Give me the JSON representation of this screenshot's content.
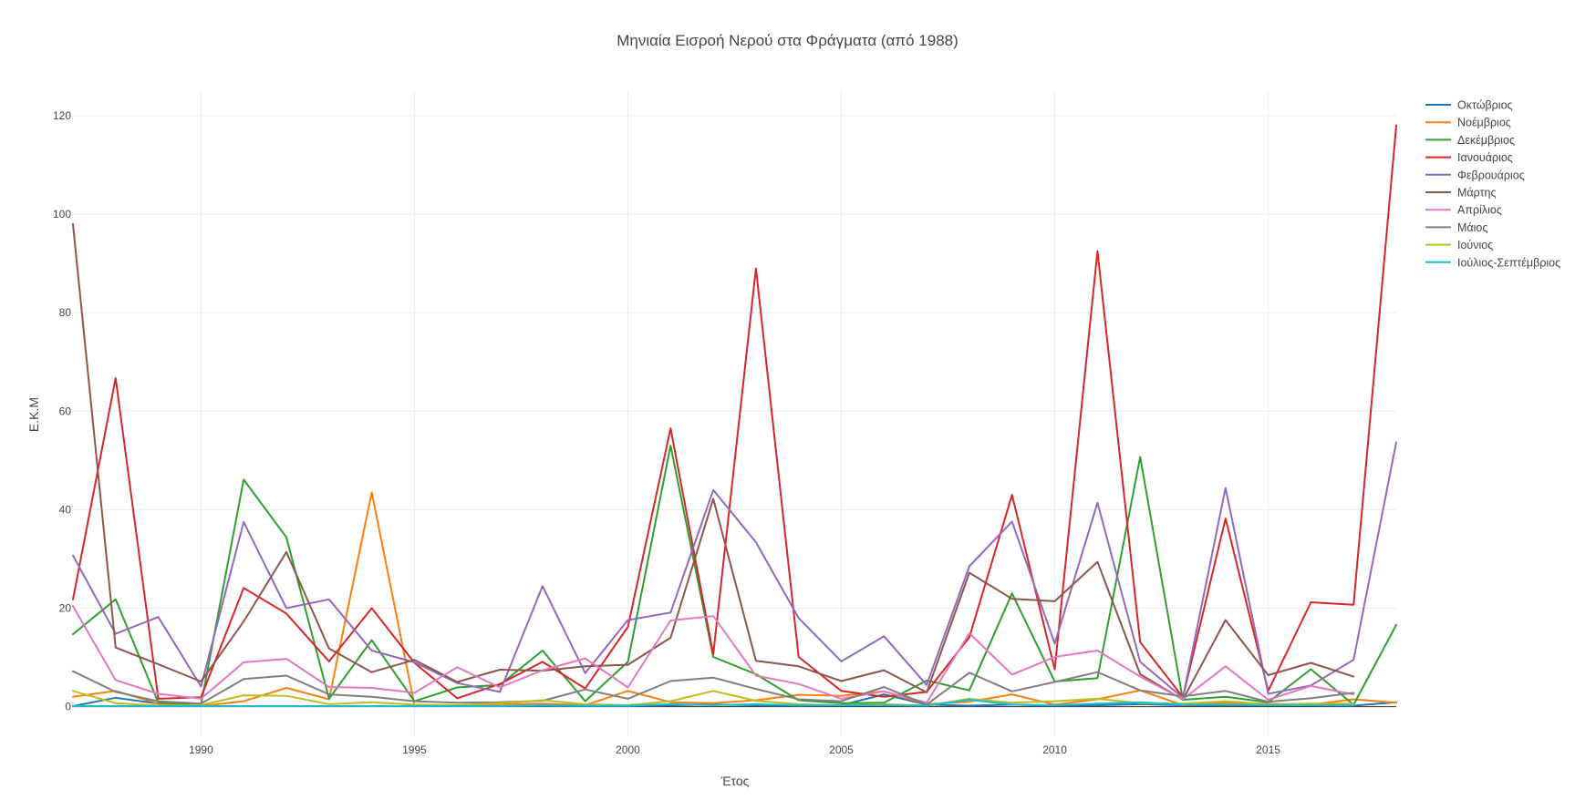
{
  "chart_data": {
    "type": "line",
    "title": "Μηνιαία Εισροή Νερού στα Φράγματα (από 1988)",
    "xlabel": "Έτος",
    "ylabel": "Ε.Κ.Μ",
    "xlim": [
      1987,
      2018
    ],
    "ylim": [
      -6,
      125
    ],
    "x_ticks": [
      1990,
      1995,
      2000,
      2005,
      2010,
      2015
    ],
    "y_ticks": [
      0,
      20,
      40,
      60,
      80,
      100,
      120
    ],
    "grid": true,
    "legend_position": "top-right",
    "x": [
      1987,
      1988,
      1989,
      1990,
      1991,
      1992,
      1993,
      1994,
      1995,
      1996,
      1997,
      1998,
      1999,
      2000,
      2001,
      2002,
      2003,
      2004,
      2005,
      2006,
      2007,
      2008,
      2009,
      2010,
      2011,
      2012,
      2013,
      2014,
      2015,
      2016,
      2017,
      2018
    ],
    "series": [
      {
        "name": "Οκτώβριος",
        "color": "#1f77b4",
        "values": [
          0.1,
          1.8,
          0.6,
          0.1,
          0.1,
          0.1,
          0.1,
          0.1,
          0.1,
          0.1,
          0.1,
          0.1,
          0.1,
          0.1,
          0.3,
          0.4,
          0.3,
          0.2,
          0.3,
          2.5,
          0.4,
          0.2,
          0.4,
          0.2,
          0.3,
          0.5,
          0.3,
          0.3,
          0.3,
          0.3,
          0.2,
          0.9
        ]
      },
      {
        "name": "Νοέμβριος",
        "color": "#ff7f0e",
        "values": [
          2.0,
          3.2,
          0.6,
          0.1,
          1.1,
          3.8,
          1.5,
          43.5,
          0.3,
          0.3,
          0.5,
          0.6,
          0.3,
          3.2,
          0.9,
          0.7,
          1.3,
          2.4,
          2.2,
          3.1,
          0.5,
          1.0,
          2.5,
          0.4,
          1.5,
          3.3,
          0.3,
          0.8,
          0.6,
          0.4,
          1.5,
          0.8
        ]
      },
      {
        "name": "Δεκέμβριος",
        "color": "#2ca02c",
        "values": [
          14.7,
          21.8,
          0.8,
          0.4,
          46.1,
          34.4,
          1.6,
          13.5,
          1.1,
          3.9,
          4.4,
          11.4,
          1.1,
          9.1,
          53.0,
          10.1,
          6.6,
          1.3,
          0.7,
          0.8,
          5.3,
          3.3,
          23.0,
          5.1,
          5.8,
          50.7,
          1.4,
          2.0,
          0.9,
          7.6,
          0.4,
          16.6
        ]
      },
      {
        "name": "Ιανουάριος",
        "color": "#d62728",
        "values": [
          21.8,
          66.7,
          1.6,
          1.9,
          24.1,
          18.9,
          9.2,
          20.0,
          8.9,
          1.7,
          4.6,
          9.1,
          3.7,
          16.2,
          56.5,
          10.6,
          89.0,
          10.1,
          3.2,
          2.0,
          3.0,
          14.1,
          43.0,
          7.6,
          92.5,
          13.1,
          1.9,
          38.2,
          3.2,
          21.2,
          20.7,
          118.0
        ]
      },
      {
        "name": "Φεβρουάριος",
        "color": "#9467bd",
        "values": [
          30.7,
          14.8,
          18.2,
          4.1,
          37.5,
          20.0,
          21.8,
          11.4,
          9.0,
          4.8,
          3.0,
          24.5,
          6.8,
          17.6,
          19.1,
          44.0,
          33.4,
          18.0,
          9.2,
          14.3,
          4.4,
          28.5,
          37.6,
          12.8,
          41.4,
          9.1,
          1.8,
          44.4,
          2.6,
          4.3,
          9.5,
          53.7
        ]
      },
      {
        "name": "Μάρτης",
        "color": "#8c564b",
        "values": [
          98.0,
          12.0,
          8.6,
          5.1,
          17.3,
          31.4,
          11.8,
          7.0,
          9.5,
          5.0,
          7.5,
          7.3,
          8.2,
          8.5,
          14.0,
          42.2,
          9.3,
          8.2,
          5.2,
          7.4,
          2.9,
          27.2,
          21.9,
          21.4,
          29.4,
          6.6,
          1.4,
          17.6,
          6.4,
          8.9,
          6.1,
          null
        ]
      },
      {
        "name": "Απρίλιος",
        "color": "#e377c2",
        "values": [
          20.4,
          5.4,
          2.6,
          1.6,
          9.0,
          9.7,
          4.0,
          3.8,
          2.8,
          8.0,
          3.9,
          7.4,
          9.8,
          3.9,
          17.5,
          18.4,
          6.3,
          4.6,
          1.6,
          3.1,
          0.8,
          14.9,
          6.5,
          10.1,
          11.4,
          6.1,
          1.5,
          8.2,
          1.4,
          4.2,
          2.5,
          null
        ]
      },
      {
        "name": "Μάιος",
        "color": "#7f7f7f",
        "values": [
          7.2,
          3.0,
          1.1,
          0.6,
          5.6,
          6.3,
          2.5,
          2.0,
          1.1,
          0.8,
          0.9,
          1.2,
          3.5,
          1.6,
          5.2,
          5.9,
          3.6,
          1.5,
          1.1,
          4.0,
          0.4,
          6.9,
          3.1,
          5.0,
          7.0,
          3.3,
          2.1,
          3.2,
          1.0,
          1.7,
          2.8,
          null
        ]
      },
      {
        "name": "Ιούνιος",
        "color": "#bcbd22",
        "values": [
          3.2,
          0.7,
          0.2,
          0.3,
          2.3,
          2.2,
          0.5,
          0.9,
          0.4,
          0.3,
          0.7,
          1.3,
          0.5,
          0.3,
          1.1,
          3.2,
          1.2,
          0.5,
          0.3,
          0.5,
          0.2,
          1.6,
          0.8,
          1.1,
          1.6,
          0.7,
          0.6,
          1.1,
          0.5,
          0.6,
          0.6,
          null
        ]
      },
      {
        "name": "Ιούλιος-Σεπτέμβριος",
        "color": "#17becf",
        "values": [
          0.1,
          0.1,
          0.1,
          0.1,
          0.1,
          0.1,
          0.1,
          0.1,
          0.1,
          0.1,
          0.1,
          0.3,
          0.2,
          0.2,
          0.5,
          0.3,
          0.5,
          0.3,
          0.3,
          0.3,
          0.2,
          1.4,
          0.4,
          0.3,
          0.6,
          0.9,
          0.4,
          0.4,
          0.3,
          0.3,
          0.3,
          null
        ]
      }
    ]
  }
}
